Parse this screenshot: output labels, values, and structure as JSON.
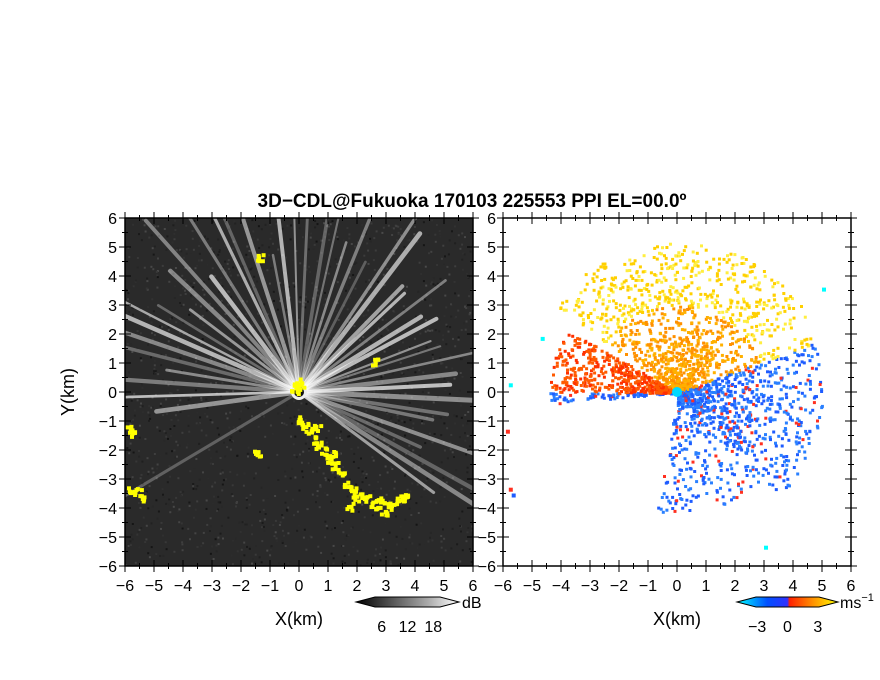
{
  "chart_data": {
    "type": "heatmap",
    "title": "3D−CDL@Fukuoka 170103 225553 PPI EL=00.0º",
    "panels": [
      {
        "id": "snr",
        "xlabel": "X(km)",
        "ylabel": "Y(km)",
        "xlim": [
          -6,
          6
        ],
        "ylim": [
          -6,
          6
        ],
        "xticks": [
          "−6",
          "−5",
          "−4",
          "−3",
          "−2",
          "−1",
          "0",
          "1",
          "2",
          "3",
          "4",
          "5",
          "6"
        ],
        "yticks": [
          "6",
          "5",
          "4",
          "3",
          "2",
          "1",
          "0",
          "−1",
          "−2",
          "−3",
          "−4",
          "−5",
          "−6"
        ],
        "colorbar": {
          "unit": "dB",
          "ticks": [
            "6",
            "12",
            "18"
          ],
          "tick_values": [
            6,
            12,
            18
          ],
          "range": [
            0,
            24
          ],
          "colors": [
            "#000000",
            "#555555",
            "#aaaaaa",
            "#ffffff"
          ]
        },
        "background": "#2a2a2a",
        "flag_color": "#ffff00"
      },
      {
        "id": "velocity",
        "xlabel": "X(km)",
        "xlim": [
          -6,
          6
        ],
        "ylim": [
          -6,
          6
        ],
        "xticks": [
          "−6",
          "−5",
          "−4",
          "−3",
          "−2",
          "−1",
          "0",
          "1",
          "2",
          "3",
          "4",
          "5",
          "6"
        ],
        "colorbar": {
          "unit": "ms",
          "unit_exponent": "−1",
          "ticks": [
            "−3",
            "0",
            "3"
          ],
          "tick_values": [
            -3,
            0,
            3
          ],
          "range": [
            -5,
            5
          ],
          "colors": [
            "#00ffff",
            "#0050ff",
            "#ff2000",
            "#ff9000",
            "#ffff00"
          ]
        },
        "background": "#ffffff"
      }
    ]
  },
  "colors": {
    "flag": "#ffff00",
    "approaching": "#1e5cff",
    "receding": "#ff6a00",
    "center": "#00d8ff"
  }
}
